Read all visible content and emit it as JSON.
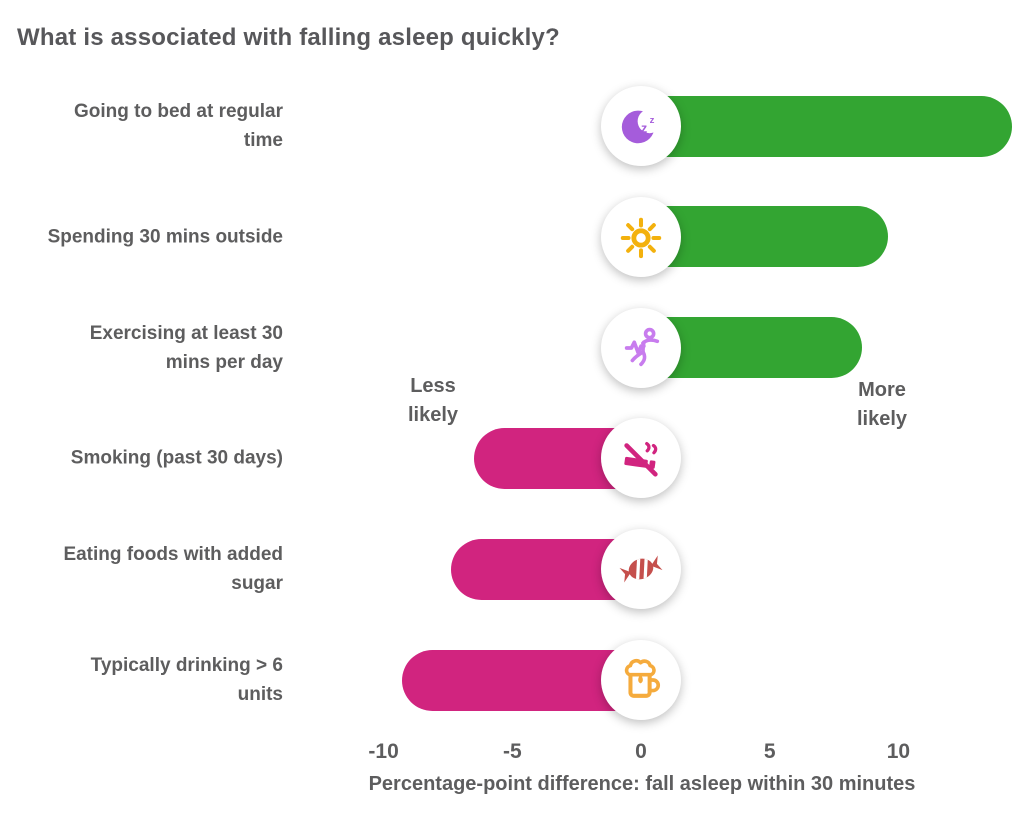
{
  "chart_data": {
    "type": "bar",
    "orientation": "horizontal",
    "title": "What is associated with falling asleep quickly?",
    "xlabel": "Percentage-point difference: fall asleep within 30 minutes",
    "xlim": [
      -10.5,
      14.5
    ],
    "x_ticks": [
      -10,
      -5,
      0,
      5,
      10
    ],
    "grid": false,
    "legend": false,
    "less_label": "Less likely",
    "more_label": "More likely",
    "colors": {
      "positive_bar": "#33a532",
      "negative_bar": "#d1247f",
      "text": "#5d5d5e"
    },
    "categories": [
      "Going to bed at regular time",
      "Spending 30 mins outside",
      "Exercising at least 30 mins per day",
      "Smoking (past 30 days)",
      "Eating foods with added sugar",
      "Typically drinking > 6 units"
    ],
    "values": [
      14.4,
      9.6,
      8.6,
      -6.5,
      -7.4,
      -9.3
    ],
    "items": [
      {
        "label": "Going to bed at regular\ntime",
        "value": 14.4,
        "icon": "moon-zzz-icon",
        "icon_color": "#a55cdb"
      },
      {
        "label": "Spending 30 mins outside",
        "value": 9.6,
        "icon": "sun-icon",
        "icon_color": "#f3b10d"
      },
      {
        "label": "Exercising at least 30\nmins per day",
        "value": 8.6,
        "icon": "runner-icon",
        "icon_color": "#c87cee"
      },
      {
        "label": "Smoking (past 30 days)",
        "value": -6.5,
        "icon": "no-smoking-icon",
        "icon_color": "#d1247f"
      },
      {
        "label": "Eating foods with added\nsugar",
        "value": -7.4,
        "icon": "candy-icon",
        "icon_color": "#c54f4c"
      },
      {
        "label": "Typically drinking > 6\nunits",
        "value": -9.3,
        "icon": "beer-icon",
        "icon_color": "#f5ab3d"
      }
    ]
  }
}
